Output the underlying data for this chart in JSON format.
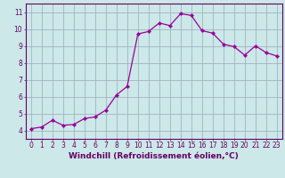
{
  "x": [
    0,
    1,
    2,
    3,
    4,
    5,
    6,
    7,
    8,
    9,
    10,
    11,
    12,
    13,
    14,
    15,
    16,
    17,
    18,
    19,
    20,
    21,
    22,
    23
  ],
  "y": [
    4.1,
    4.2,
    4.6,
    4.3,
    4.35,
    4.7,
    4.8,
    5.2,
    6.1,
    6.6,
    9.7,
    9.85,
    10.35,
    10.2,
    10.9,
    10.8,
    9.9,
    9.75,
    9.1,
    8.95,
    8.45,
    9.0,
    8.6,
    8.4
  ],
  "line_color": "#990099",
  "marker": "D",
  "marker_size": 2.2,
  "bg_color": "#cce8e8",
  "grid_color": "#99aabb",
  "xlabel": "Windchill (Refroidissement éolien,°C)",
  "xlim": [
    -0.5,
    23.5
  ],
  "ylim": [
    3.5,
    11.5
  ],
  "yticks": [
    4,
    5,
    6,
    7,
    8,
    9,
    10,
    11
  ],
  "xticks": [
    0,
    1,
    2,
    3,
    4,
    5,
    6,
    7,
    8,
    9,
    10,
    11,
    12,
    13,
    14,
    15,
    16,
    17,
    18,
    19,
    20,
    21,
    22,
    23
  ],
  "tick_color": "#660066",
  "tick_fontsize": 5.5,
  "xlabel_fontsize": 6.5,
  "xlabel_color": "#660066",
  "border_color": "#660066",
  "linewidth": 0.9
}
